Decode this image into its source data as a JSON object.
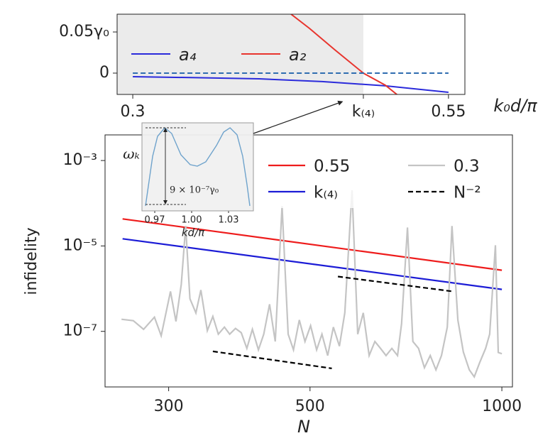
{
  "chart_data": [
    {
      "type": "line",
      "xlabel": "k₀d/π",
      "xlim": [
        0.2876,
        0.563
      ],
      "ylim": [
        -0.0259,
        0.0716
      ],
      "xticks": [
        0.3,
        {
          "value": 0.4826,
          "label": "k₍₄₎"
        },
        0.55
      ],
      "yticks": [
        0,
        {
          "value": 0.05,
          "label": "0.05γ₀"
        }
      ],
      "shade": [
        0.2876,
        0.4826
      ],
      "shade_color": "#ebebeb",
      "legend": "upper left",
      "series": [
        {
          "name": "a₄",
          "color": "#2b2bdb",
          "x": [
            0.3,
            0.35,
            0.4,
            0.45,
            0.5,
            0.55
          ],
          "values": [
            -0.0043,
            -0.0055,
            -0.0069,
            -0.0103,
            -0.0155,
            -0.0233
          ]
        },
        {
          "name": "a₂",
          "color": "#e8352e",
          "x": [
            0.42,
            0.44,
            0.46,
            0.4826,
            0.5,
            0.51
          ],
          "values": [
            0.078,
            0.0543,
            0.0284,
            0,
            -0.0147,
            -0.027
          ]
        },
        {
          "color": "#2f6db0",
          "dash": true,
          "x": [
            0.3,
            0.55
          ],
          "values": [
            0,
            0
          ]
        }
      ]
    },
    {
      "type": "line",
      "xscale": "log",
      "yscale": "log",
      "xlabel": "N",
      "ylabel": "infidelity",
      "xlim": [
        238.4,
        1039
      ],
      "ylim": [
        5e-09,
        0.00398
      ],
      "xticks": [
        300,
        500,
        1000
      ],
      "yticks": [
        {
          "value": 0.001,
          "label": "10⁻³"
        },
        {
          "value": 1e-05,
          "label": "10⁻⁵"
        },
        {
          "value": 1e-07,
          "label": "10⁻⁷"
        }
      ],
      "legend": "upper right",
      "series": [
        {
          "name": "0.55",
          "color": "#ee1c1c",
          "x": [
            254,
            1000
          ],
          "values": [
            4.3e-05,
            2.7e-06
          ]
        },
        {
          "name": "k₍₄₎",
          "color": "#1c1cd6",
          "x": [
            254,
            1000
          ],
          "values": [
            1.47e-05,
            9.6e-07
          ]
        },
        {
          "name": "0.3",
          "color": "#c4c4c4",
          "x": [
            253,
            264,
            274,
            285,
            292,
            302,
            308,
            314,
            319,
            324,
            331,
            337,
            345,
            352,
            359,
            367,
            374,
            382,
            390,
            398,
            406,
            415,
            423,
            432,
            441,
            452,
            462,
            471,
            481,
            491,
            501,
            512,
            522,
            533,
            544,
            556,
            567,
            582,
            594,
            606,
            619,
            632,
            645,
            658,
            672,
            686,
            696,
            711,
            725,
            740,
            756,
            772,
            788,
            804,
            821,
            835,
            853,
            870,
            889,
            905,
            923,
            943,
            957,
            977,
            987,
            1000
          ],
          "values": [
            1.92e-07,
            1.78e-07,
            1.12e-07,
            2.15e-07,
            7.9e-08,
            8.6e-07,
            1.71e-07,
            1.26e-06,
            2.93e-05,
            5.8e-07,
            2.71e-07,
            9.3e-07,
            1.04e-07,
            2.24e-07,
            8.6e-08,
            1.26e-07,
            8.6e-08,
            1.17e-07,
            9.3e-08,
            4e-08,
            1.12e-07,
            3.7e-08,
            8.6e-08,
            4.3e-07,
            5.8e-08,
            8.6e-05,
            8.6e-08,
            3.7e-08,
            1.85e-07,
            5.8e-08,
            1.36e-07,
            3.7e-08,
            8.6e-08,
            2.71e-08,
            1.26e-07,
            4.5e-08,
            2.71e-07,
            0.0002,
            8.6e-08,
            2.71e-07,
            2.71e-08,
            5.8e-08,
            4e-08,
            2.71e-08,
            4e-08,
            2.71e-08,
            1.52e-07,
            2.71e-05,
            5.8e-08,
            4e-08,
            1.41e-08,
            2.71e-08,
            1.26e-08,
            2.71e-08,
            1.26e-07,
            2.93e-05,
            1.85e-07,
            3.3e-08,
            1.26e-08,
            8.6e-09,
            1.85e-08,
            4e-08,
            8.6e-08,
            1.04e-05,
            3.2e-08,
            3e-08
          ]
        },
        {
          "name": "N⁻²",
          "color": "#000000",
          "dash": true,
          "x": [
            352,
            541,
            null,
            553,
            838
          ],
          "values": [
            3.4e-08,
            1.36e-08,
            null,
            1.92e-06,
            8.6e-07
          ]
        }
      ]
    },
    {
      "type": "line",
      "xlabel": "kd/π",
      "ylabel": "ωₖ",
      "annotation": "9 × 10⁻⁷γ₀",
      "xlim": [
        0.9596,
        1.0502
      ],
      "ylim": [
        -9.75,
        0.58
      ],
      "xticks": [
        0.97,
        {
          "value": 1,
          "label": "1.00"
        },
        1.03
      ],
      "series": [
        {
          "color": "#6fa3cc",
          "x": [
            0.9625,
            0.9683,
            0.9723,
            0.9781,
            0.9838,
            0.9913,
            0.9988,
            1.0046,
            1.0115,
            1.0202,
            1.026,
            1.0312,
            1.0369,
            1.0415,
            1.045,
            1.0473
          ],
          "values": [
            -9.17,
            -3.33,
            -1.0,
            0,
            -0.67,
            -3.17,
            -4.33,
            -4.5,
            -4.0,
            -2.08,
            -0.5,
            0,
            -0.83,
            -3.33,
            -6.67,
            -9.17
          ]
        }
      ]
    }
  ]
}
